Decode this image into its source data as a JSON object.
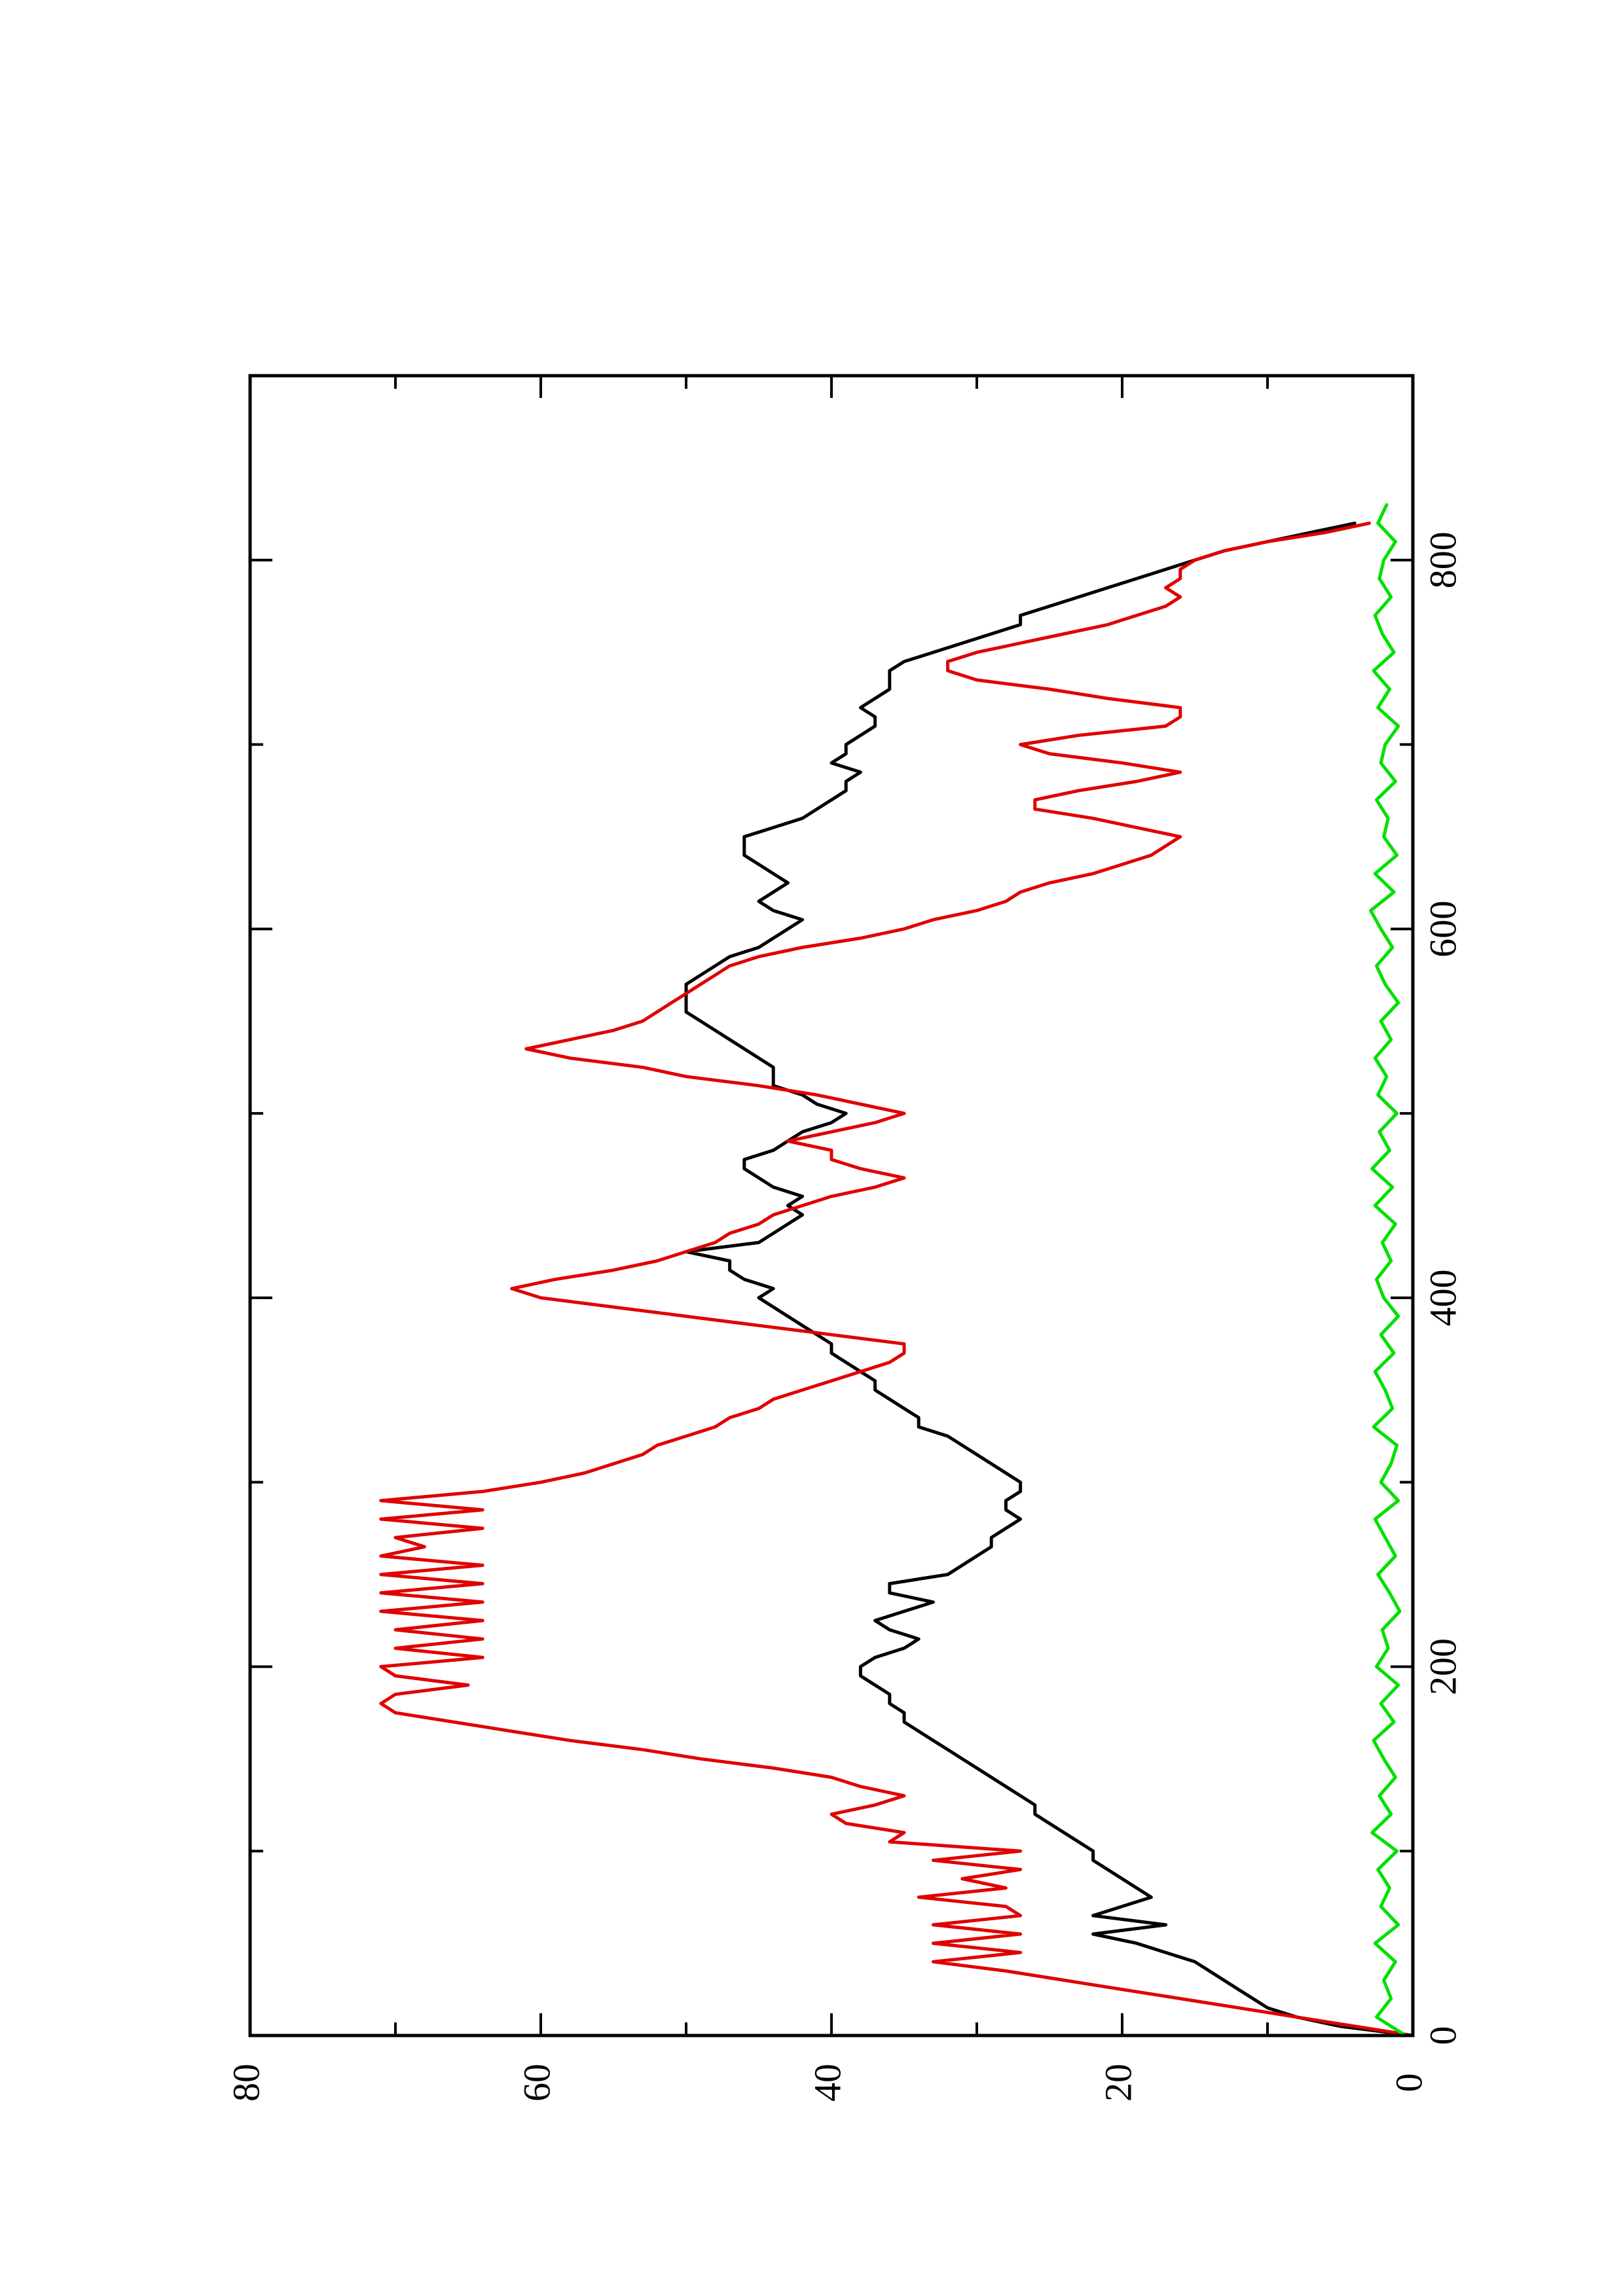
{
  "chart_data": {
    "type": "line",
    "title": "",
    "xlabel": "",
    "ylabel": "",
    "orientation": "rotated 90 degrees counter-clockwise (x axis runs bottom-to-top, y axis increases left-to-right)",
    "xlim": [
      0,
      900
    ],
    "ylim": [
      0,
      80
    ],
    "x_ticks": [
      0,
      200,
      400,
      600,
      800
    ],
    "x_minor_ticks": [
      100,
      300,
      500,
      700
    ],
    "y_ticks": [
      0,
      20,
      40,
      60,
      80
    ],
    "y_minor_ticks": [
      10,
      30,
      50,
      70
    ],
    "grid": false,
    "legend": "none",
    "series": [
      {
        "color": "#000000",
        "x": [
          0,
          5,
          10,
          15,
          20,
          25,
          30,
          35,
          40,
          45,
          50,
          55,
          60,
          65,
          70,
          75,
          80,
          85,
          90,
          95,
          100,
          105,
          110,
          115,
          120,
          125,
          130,
          135,
          140,
          145,
          150,
          155,
          160,
          165,
          170,
          175,
          180,
          185,
          190,
          195,
          200,
          205,
          210,
          215,
          220,
          225,
          230,
          235,
          240,
          245,
          250,
          255,
          260,
          265,
          270,
          275,
          280,
          285,
          290,
          295,
          300,
          305,
          310,
          315,
          320,
          325,
          330,
          335,
          340,
          345,
          350,
          355,
          360,
          365,
          370,
          375,
          380,
          385,
          390,
          395,
          400,
          405,
          410,
          415,
          420,
          425,
          430,
          435,
          440,
          445,
          450,
          455,
          460,
          465,
          470,
          475,
          480,
          485,
          490,
          495,
          500,
          505,
          510,
          515,
          520,
          525,
          530,
          535,
          540,
          545,
          550,
          555,
          560,
          565,
          570,
          575,
          580,
          585,
          590,
          595,
          600,
          605,
          610,
          615,
          620,
          625,
          630,
          635,
          640,
          645,
          650,
          655,
          660,
          665,
          670,
          675,
          680,
          685,
          690,
          695,
          700,
          705,
          710,
          715,
          720,
          725,
          730,
          735,
          740,
          745,
          750,
          755,
          760,
          765,
          770,
          775,
          780,
          785,
          790,
          795,
          800,
          805,
          810,
          815,
          820
        ],
        "y": [
          0,
          5,
          8,
          10,
          11,
          12,
          13,
          14,
          15,
          17,
          19,
          22,
          17,
          22,
          20,
          18,
          19,
          20,
          21,
          22,
          22,
          23,
          24,
          25,
          26,
          26,
          27,
          28,
          29,
          30,
          31,
          32,
          33,
          34,
          35,
          35,
          36,
          36,
          37,
          38,
          38,
          37,
          35,
          34,
          36,
          37,
          35,
          33,
          36,
          36,
          32,
          31,
          30,
          29,
          29,
          28,
          27,
          28,
          28,
          27,
          27,
          28,
          29,
          30,
          31,
          32,
          34,
          34,
          35,
          36,
          37,
          37,
          38,
          39,
          40,
          40,
          41,
          42,
          43,
          44,
          45,
          44,
          46,
          47,
          47,
          50,
          45,
          44,
          43,
          42,
          43,
          42,
          44,
          45,
          46,
          46,
          44,
          43,
          42,
          40,
          39,
          41,
          42,
          44,
          44,
          44,
          45,
          46,
          47,
          48,
          49,
          50,
          50,
          50,
          50,
          49,
          48,
          47,
          45,
          44,
          43,
          42,
          44,
          45,
          44,
          43,
          44,
          45,
          46,
          46,
          46,
          44,
          42,
          41,
          40,
          39,
          39,
          38,
          40,
          39,
          39,
          38,
          37,
          37,
          38,
          37,
          36,
          36,
          36,
          35,
          33,
          31,
          29,
          27,
          27,
          25,
          23,
          21,
          19,
          17,
          15,
          13,
          10,
          7,
          4
        ]
      },
      {
        "color": "#e00000",
        "x": [
          0,
          5,
          10,
          15,
          20,
          25,
          30,
          35,
          40,
          45,
          50,
          55,
          60,
          65,
          70,
          75,
          80,
          85,
          90,
          95,
          100,
          105,
          110,
          115,
          120,
          125,
          130,
          135,
          140,
          145,
          150,
          155,
          160,
          165,
          170,
          175,
          180,
          185,
          190,
          195,
          200,
          205,
          210,
          215,
          220,
          225,
          230,
          235,
          240,
          245,
          250,
          255,
          260,
          265,
          270,
          275,
          280,
          285,
          290,
          295,
          300,
          305,
          310,
          315,
          320,
          325,
          330,
          335,
          340,
          345,
          350,
          355,
          360,
          365,
          370,
          375,
          380,
          385,
          390,
          395,
          400,
          405,
          410,
          415,
          420,
          425,
          430,
          435,
          440,
          445,
          450,
          455,
          460,
          465,
          470,
          475,
          480,
          485,
          490,
          495,
          500,
          505,
          510,
          515,
          520,
          525,
          530,
          535,
          540,
          545,
          550,
          555,
          560,
          565,
          570,
          575,
          580,
          585,
          590,
          595,
          600,
          605,
          610,
          615,
          620,
          625,
          630,
          635,
          640,
          645,
          650,
          655,
          660,
          665,
          670,
          675,
          680,
          685,
          690,
          695,
          700,
          705,
          710,
          715,
          720,
          725,
          730,
          735,
          740,
          745,
          750,
          755,
          760,
          765,
          770,
          775,
          780,
          785,
          790,
          795,
          800,
          805,
          810,
          815,
          820
        ],
        "y": [
          0,
          4,
          8,
          12,
          16,
          20,
          24,
          28,
          33,
          27,
          33,
          27,
          33,
          27,
          28,
          34,
          28,
          31,
          27,
          33,
          27,
          36,
          35,
          39,
          40,
          37,
          35,
          38,
          40,
          44,
          49,
          53,
          58,
          62,
          66,
          70,
          71,
          70,
          65,
          70,
          71,
          64,
          70,
          64,
          70,
          64,
          71,
          64,
          71,
          64,
          71,
          64,
          71,
          68,
          70,
          64,
          71,
          64,
          71,
          64,
          60,
          57,
          55,
          53,
          52,
          50,
          48,
          47,
          45,
          44,
          42,
          40,
          38,
          36,
          35,
          35,
          40,
          45,
          50,
          55,
          60,
          62,
          59,
          55,
          52,
          50,
          48,
          47,
          45,
          44,
          42,
          40,
          37,
          35,
          38,
          40,
          40,
          43,
          40,
          37,
          35,
          38,
          41,
          45,
          50,
          53,
          58,
          61,
          58,
          55,
          53,
          52,
          51,
          50,
          49,
          48,
          47,
          45,
          42,
          38,
          35,
          33,
          30,
          28,
          27,
          25,
          22,
          20,
          18,
          17,
          16,
          19,
          22,
          26,
          26,
          23,
          19,
          16,
          20,
          25,
          27,
          23,
          17,
          16,
          16,
          21,
          25,
          30,
          32,
          32,
          30,
          27,
          24,
          21,
          19,
          17,
          16,
          17,
          16,
          16,
          15,
          13,
          10,
          6,
          3
        ],
        "note": "step-like trace; values read approximately from the rotated plot"
      },
      {
        "color": "#00e000",
        "x": [
          0,
          10,
          20,
          30,
          40,
          50,
          60,
          70,
          80,
          90,
          100,
          110,
          120,
          130,
          140,
          150,
          160,
          170,
          180,
          190,
          200,
          210,
          220,
          230,
          240,
          250,
          260,
          270,
          280,
          290,
          300,
          310,
          320,
          330,
          340,
          350,
          360,
          370,
          380,
          390,
          400,
          410,
          420,
          430,
          440,
          450,
          460,
          470,
          480,
          490,
          500,
          510,
          520,
          530,
          540,
          550,
          560,
          570,
          580,
          590,
          600,
          610,
          620,
          630,
          640,
          650,
          660,
          670,
          680,
          690,
          700,
          710,
          720,
          730,
          740,
          750,
          760,
          770,
          780,
          790,
          800,
          810,
          820,
          830
        ],
        "y": [
          0.5,
          2.5,
          1.5,
          2.0,
          1.2,
          2.6,
          1.0,
          2.2,
          1.6,
          2.4,
          1.1,
          2.8,
          1.5,
          2.3,
          1.2,
          2.0,
          2.7,
          1.3,
          2.2,
          1.0,
          2.5,
          1.7,
          2.1,
          0.9,
          1.6,
          2.4,
          1.2,
          1.9,
          2.6,
          1.0,
          2.2,
          1.5,
          1.1,
          2.7,
          1.4,
          1.9,
          2.6,
          1.3,
          2.2,
          1.0,
          2.0,
          2.5,
          1.5,
          2.1,
          1.2,
          2.6,
          1.4,
          2.8,
          1.6,
          2.3,
          1.1,
          2.4,
          1.8,
          2.6,
          1.5,
          2.2,
          1.0,
          1.9,
          2.5,
          1.4,
          2.2,
          2.9,
          1.3,
          2.6,
          1.1,
          2.0,
          1.7,
          2.5,
          1.2,
          2.2,
          1.9,
          1.0,
          2.4,
          1.6,
          2.7,
          1.3,
          2.1,
          2.6,
          1.5,
          2.3,
          2.0,
          1.2,
          2.4,
          1.8
        ]
      }
    ]
  }
}
